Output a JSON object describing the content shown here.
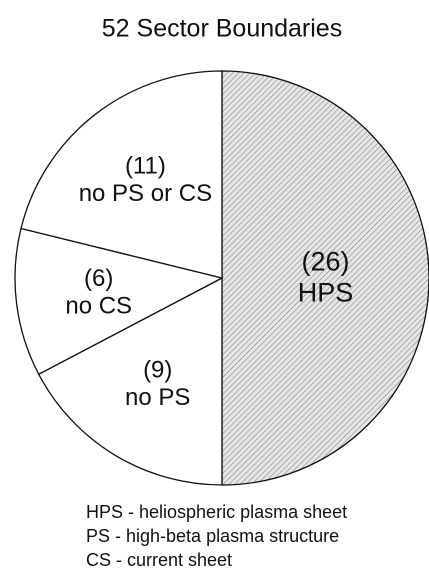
{
  "chart_data": {
    "type": "pie",
    "title": "52 Sector Boundaries",
    "categories": [
      "HPS",
      "no PS",
      "no CS",
      "no PS or CS"
    ],
    "values": [
      26,
      9,
      6,
      11
    ],
    "value_labels": [
      "(26)",
      "(9)",
      "(6)",
      "(11)"
    ],
    "colors": [
      "#d4d4d4",
      "#ffffff",
      "#ffffff",
      "#ffffff"
    ],
    "hatch": [
      true,
      false,
      false,
      false
    ],
    "notes": [
      "HPS - heliospheric plasma sheet",
      "PS - high-beta plasma structure",
      "CS - current sheet"
    ]
  }
}
